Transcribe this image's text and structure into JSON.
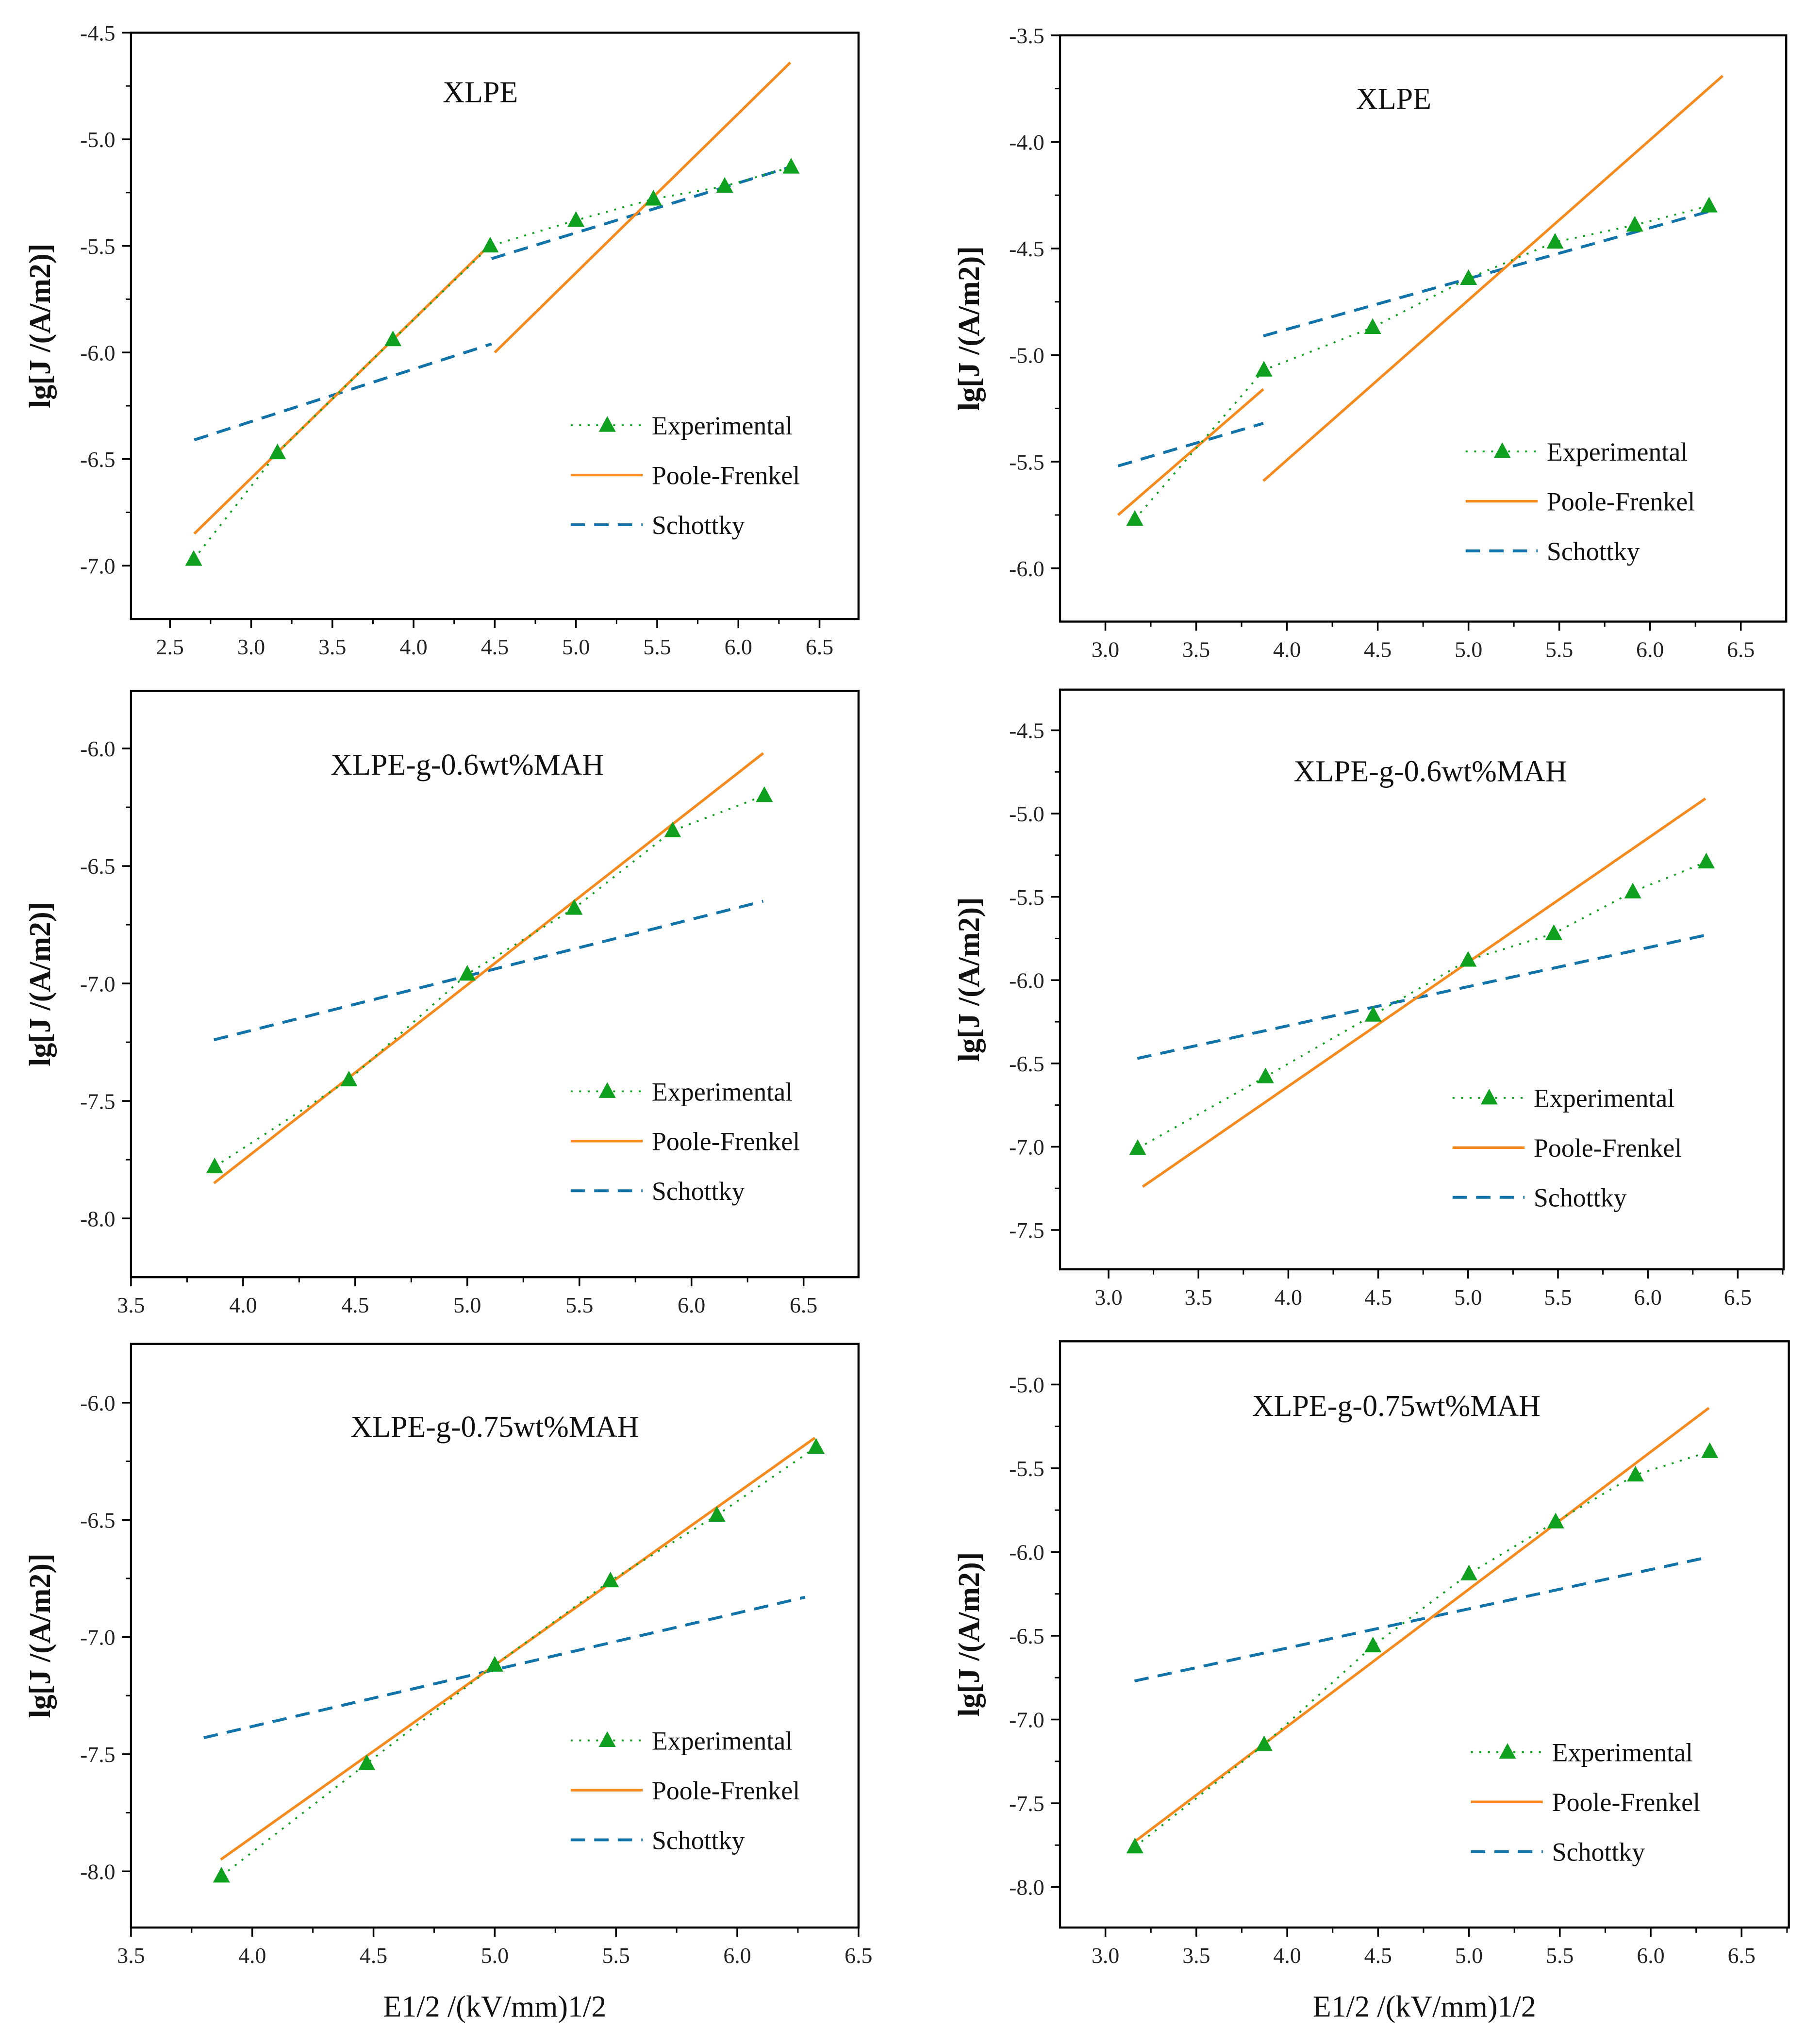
{
  "colors": {
    "experimental": "#10a020",
    "poole_frenkel": "#f58a1f",
    "schottky": "#1273a8",
    "axis": "#000000"
  },
  "legend": [
    "Experimental",
    "Poole-Frenkel",
    "Schottky"
  ],
  "ylabel": "lg[J /(A/m2)]",
  "xlabel": "E1/2 /(kV/mm)1/2",
  "chart_data": [
    {
      "type": "line",
      "title": "XLPE",
      "xlim": [
        2.26,
        6.74
      ],
      "ylim": [
        -7.25,
        -4.5
      ],
      "xticks": [
        2.5,
        3.0,
        3.5,
        4.0,
        4.5,
        5.0,
        5.5,
        6.0,
        6.5
      ],
      "yticks": [
        -7.0,
        -6.5,
        -6.0,
        -5.5,
        -5.0,
        -4.5
      ],
      "experimental": {
        "x": [
          2.646,
          3.162,
          3.873,
          4.472,
          5.0,
          5.477,
          5.916,
          6.325
        ],
        "y": [
          -6.97,
          -6.47,
          -5.94,
          -5.5,
          -5.38,
          -5.28,
          -5.22,
          -5.13
        ]
      },
      "poole_frenkel": [
        [
          [
            2.65,
            -6.85
          ],
          [
            4.45,
            -5.51
          ]
        ],
        [
          [
            4.5,
            -6.0
          ],
          [
            6.32,
            -4.64
          ]
        ]
      ],
      "schottky": [
        [
          [
            2.65,
            -6.41
          ],
          [
            4.48,
            -5.96
          ]
        ],
        [
          [
            4.48,
            -5.56
          ],
          [
            6.32,
            -5.13
          ]
        ]
      ]
    },
    {
      "type": "line",
      "title": "XLPE",
      "xlim": [
        2.75,
        6.75
      ],
      "ylim": [
        -6.25,
        -3.5
      ],
      "xticks": [
        3.0,
        3.5,
        4.0,
        4.5,
        5.0,
        5.5,
        6.0,
        6.5
      ],
      "yticks": [
        -6.0,
        -5.5,
        -5.0,
        -4.5,
        -4.0,
        -3.5
      ],
      "experimental": {
        "x": [
          3.162,
          3.873,
          4.472,
          5.0,
          5.477,
          5.916,
          6.325
        ],
        "y": [
          -5.77,
          -5.07,
          -4.87,
          -4.64,
          -4.47,
          -4.39,
          -4.3
        ]
      },
      "poole_frenkel": [
        [
          [
            3.07,
            -5.75
          ],
          [
            3.87,
            -5.16
          ]
        ],
        [
          [
            3.87,
            -5.59
          ],
          [
            6.4,
            -3.69
          ]
        ]
      ],
      "schottky": [
        [
          [
            3.07,
            -5.52
          ],
          [
            3.87,
            -5.32
          ]
        ],
        [
          [
            3.87,
            -4.91
          ],
          [
            6.35,
            -4.32
          ]
        ]
      ]
    },
    {
      "type": "line",
      "title": "XLPE-g-0.6wt%MAH",
      "xlim": [
        3.5,
        6.745
      ],
      "ylim": [
        -8.25,
        -5.755
      ],
      "xticks": [
        3.5,
        4.0,
        4.5,
        5.0,
        5.5,
        6.0,
        6.5
      ],
      "yticks": [
        -8.0,
        -7.5,
        -7.0,
        -6.5,
        -6.0
      ],
      "experimental": {
        "x": [
          3.873,
          4.472,
          5.0,
          5.477,
          5.916,
          6.325
        ],
        "y": [
          -7.78,
          -7.41,
          -6.96,
          -6.68,
          -6.35,
          -6.2
        ]
      },
      "poole_frenkel": [
        [
          [
            3.87,
            -7.85
          ],
          [
            6.32,
            -6.02
          ]
        ]
      ],
      "schottky": [
        [
          [
            3.87,
            -7.24
          ],
          [
            6.32,
            -6.65
          ]
        ]
      ]
    },
    {
      "type": "line",
      "title": "XLPE-g-0.6wt%MAH",
      "xlim": [
        2.73,
        6.755
      ],
      "ylim": [
        -7.736,
        -4.256
      ],
      "xticks": [
        3.0,
        3.5,
        4.0,
        4.5,
        5.0,
        5.5,
        6.0,
        6.5
      ],
      "yticks": [
        -7.5,
        -7.0,
        -6.5,
        -6.0,
        -5.5,
        -5.0,
        -4.5
      ],
      "experimental": {
        "x": [
          3.162,
          3.873,
          4.472,
          5.0,
          5.477,
          5.916,
          6.325
        ],
        "y": [
          -7.01,
          -6.58,
          -6.21,
          -5.88,
          -5.72,
          -5.47,
          -5.29
        ]
      },
      "poole_frenkel": [
        [
          [
            3.19,
            -7.24
          ],
          [
            6.32,
            -4.91
          ]
        ]
      ],
      "schottky": [
        [
          [
            3.16,
            -6.47
          ],
          [
            6.32,
            -5.73
          ]
        ]
      ]
    },
    {
      "type": "line",
      "title": "XLPE-g-0.75wt%MAH",
      "xlim": [
        3.5,
        6.5
      ],
      "ylim": [
        -8.24,
        -5.749
      ],
      "xticks": [
        3.5,
        4.0,
        4.5,
        5.0,
        5.5,
        6.0,
        6.5
      ],
      "yticks": [
        -8.0,
        -7.5,
        -7.0,
        -6.5,
        -6.0
      ],
      "experimental": {
        "x": [
          3.873,
          4.472,
          5.0,
          5.477,
          5.916,
          6.325
        ],
        "y": [
          -8.02,
          -7.54,
          -7.12,
          -6.76,
          -6.48,
          -6.19
        ]
      },
      "poole_frenkel": [
        [
          [
            3.87,
            -7.95
          ],
          [
            6.32,
            -6.15
          ]
        ]
      ],
      "schottky": [
        [
          [
            3.8,
            -7.43
          ],
          [
            6.28,
            -6.83
          ]
        ]
      ]
    },
    {
      "type": "line",
      "title": "XLPE-g-0.75wt%MAH",
      "xlim": [
        2.75,
        6.76
      ],
      "ylim": [
        -8.242,
        -4.742
      ],
      "xticks": [
        3.0,
        3.5,
        4.0,
        4.5,
        5.0,
        5.5,
        6.0,
        6.5
      ],
      "yticks": [
        -8.0,
        -7.5,
        -7.0,
        -6.5,
        -6.0,
        -5.5,
        -5.0
      ],
      "experimental": {
        "x": [
          3.162,
          3.873,
          4.472,
          5.0,
          5.477,
          5.916,
          6.325
        ],
        "y": [
          -7.76,
          -7.15,
          -6.56,
          -6.13,
          -5.82,
          -5.54,
          -5.4
        ]
      },
      "poole_frenkel": [
        [
          [
            3.16,
            -7.73
          ],
          [
            6.32,
            -5.14
          ]
        ]
      ],
      "schottky": [
        [
          [
            3.16,
            -6.77
          ],
          [
            6.32,
            -6.03
          ]
        ]
      ]
    }
  ]
}
